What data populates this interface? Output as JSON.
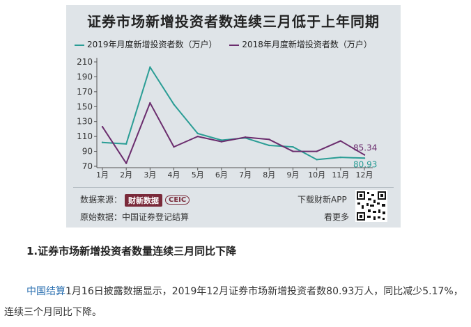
{
  "chart": {
    "title": "证券市场新增投资者数连续三月低于上年同期",
    "legend": [
      {
        "label": "2019年月度新增投资者数（万户）",
        "color": "#2a9d95"
      },
      {
        "label": "2018年月度新增投资者数（万户）",
        "color": "#6b2d6e"
      }
    ],
    "end_labels": {
      "series_2019": "80.93",
      "series_2018": "85.34"
    }
  },
  "chart_data": {
    "type": "line",
    "title": "证券市场新增投资者数连续三月低于上年同期",
    "categories": [
      "1月",
      "2月",
      "3月",
      "4月",
      "5月",
      "6月",
      "7月",
      "8月",
      "9月",
      "10月",
      "11月",
      "12月"
    ],
    "series": [
      {
        "name": "2019年月度新增投资者数（万户）",
        "color": "#2a9d95",
        "values": [
          102,
          100,
          203,
          153,
          114,
          105,
          108,
          98,
          96,
          79,
          82,
          80.93
        ]
      },
      {
        "name": "2018年月度新增投资者数（万户）",
        "color": "#6b2d6e",
        "values": [
          123,
          74,
          155,
          96,
          110,
          103,
          109,
          106,
          90,
          90,
          104,
          85.34
        ]
      }
    ],
    "yticks": [
      70,
      90,
      110,
      130,
      150,
      170,
      190,
      210
    ],
    "ylim": [
      70,
      210
    ],
    "grid": false,
    "legend_position": "top-left"
  },
  "footer": {
    "source_label": "数据来源：",
    "brand_name": "财新数据",
    "ceic_name": "CEIC",
    "original_label": "原始数据：中国证券登记结算",
    "download_app": "下载财新APP",
    "see_more": "看更多"
  },
  "article": {
    "heading": "1.证券市场新增投资者数量连续三月同比下降",
    "link_text": "中国结算",
    "paragraph_rest": "1月16日披露数据显示，2019年12月证券市场新增投资者数80.93万人，同比减少5.17%，连续三个月同比下降。"
  }
}
